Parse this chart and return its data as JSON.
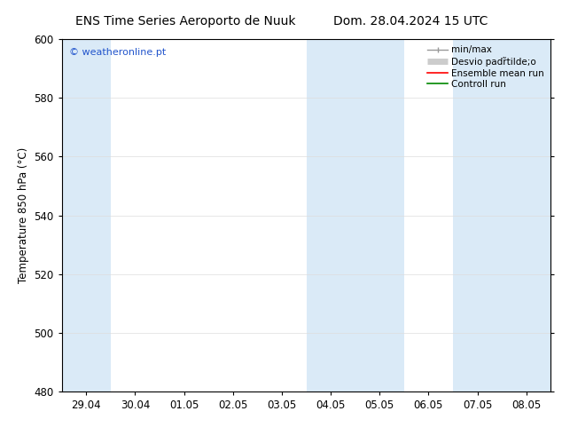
{
  "title_left": "ENS Time Series Aeroporto de Nuuk",
  "title_right": "Dom. 28.04.2024 15 UTC",
  "ylabel": "Temperature 850 hPa (°C)",
  "xlabel_ticks": [
    "29.04",
    "30.04",
    "01.05",
    "02.05",
    "03.05",
    "04.05",
    "05.05",
    "06.05",
    "07.05",
    "08.05"
  ],
  "ylim": [
    480,
    600
  ],
  "yticks": [
    480,
    500,
    520,
    540,
    560,
    580,
    600
  ],
  "bg_color": "#ffffff",
  "plot_bg_color": "#ffffff",
  "shaded_band_color": "#daeaf7",
  "watermark_text": "© weatheronline.pt",
  "watermark_color": "#2255cc",
  "spine_color": "#000000",
  "tick_color": "#000000",
  "font_size": 8.5,
  "title_font_size": 10,
  "legend_min_max_color": "#999999",
  "legend_std_color": "#cccccc",
  "legend_ensemble_color": "#ff0000",
  "legend_control_color": "#008800",
  "shaded_ranges": [
    [
      -0.5,
      0.5
    ],
    [
      4.5,
      6.5
    ],
    [
      7.5,
      9.5
    ]
  ]
}
